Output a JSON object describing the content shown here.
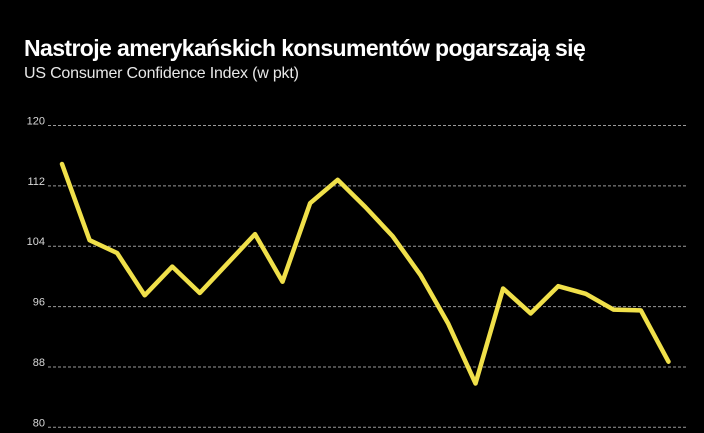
{
  "header": {
    "title": "Nastroje amerykańskich konsumentów pogarszają się",
    "subtitle": "US Consumer Confidence Index (w pkt)"
  },
  "colors": {
    "background": "#000000",
    "line": "#F0E04A",
    "grid": "#9a9a9a",
    "text": "#ffffff"
  },
  "chart_data": {
    "type": "line",
    "title": "Nastroje amerykańskich konsumentów pogarszają się",
    "subtitle": "US Consumer Confidence Index (w pkt)",
    "xlabel": "",
    "ylabel": "",
    "ylim": [
      80,
      120
    ],
    "yticks": [
      80,
      88,
      96,
      104,
      112,
      120
    ],
    "grid": true,
    "legend": null,
    "x": [
      1,
      2,
      3,
      4,
      5,
      6,
      7,
      8,
      9,
      10,
      11,
      12,
      13,
      14,
      15,
      16,
      17,
      18,
      19,
      20,
      21,
      22,
      23
    ],
    "series": [
      {
        "name": "US Consumer Confidence Index",
        "values": [
          114.9,
          104.8,
          103.1,
          97.5,
          101.3,
          97.8,
          101.7,
          105.6,
          99.3,
          109.7,
          112.8,
          109.2,
          105.3,
          100.2,
          93.8,
          85.8,
          98.4,
          95.1,
          98.7,
          97.7,
          95.6,
          95.5,
          88.7
        ]
      }
    ]
  }
}
